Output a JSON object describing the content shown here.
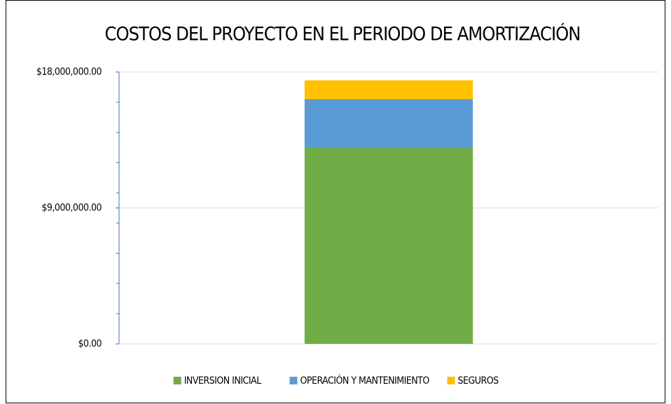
{
  "chart_data": {
    "type": "stacked_bar",
    "title": "COSTOS DEL PROYECTO EN EL PERIODO DE AMORTIZACIÓN",
    "categories": [
      null
    ],
    "series": [
      {
        "name": "INVERSION INICIAL",
        "color": "#70ad47",
        "values": [
          13000000
        ]
      },
      {
        "name": "OPERACIÓN Y MANTENIMIENTO",
        "color": "#5b9bd5",
        "values": [
          3200000
        ]
      },
      {
        "name": "SEGUROS",
        "color": "#ffc000",
        "values": [
          1250000
        ]
      }
    ],
    "ylim": [
      0,
      18000000
    ],
    "yticks": [
      {
        "value": 0,
        "label": "$0.00"
      },
      {
        "value": 9000000,
        "label": "$9,000,000.00"
      },
      {
        "value": 18000000,
        "label": "$18,000,000.00"
      }
    ],
    "minor_yticks": [
      2000000,
      4000000,
      6000000,
      8000000,
      10000000,
      12000000,
      14000000,
      16000000
    ],
    "grid": true,
    "legend": "bottom"
  }
}
